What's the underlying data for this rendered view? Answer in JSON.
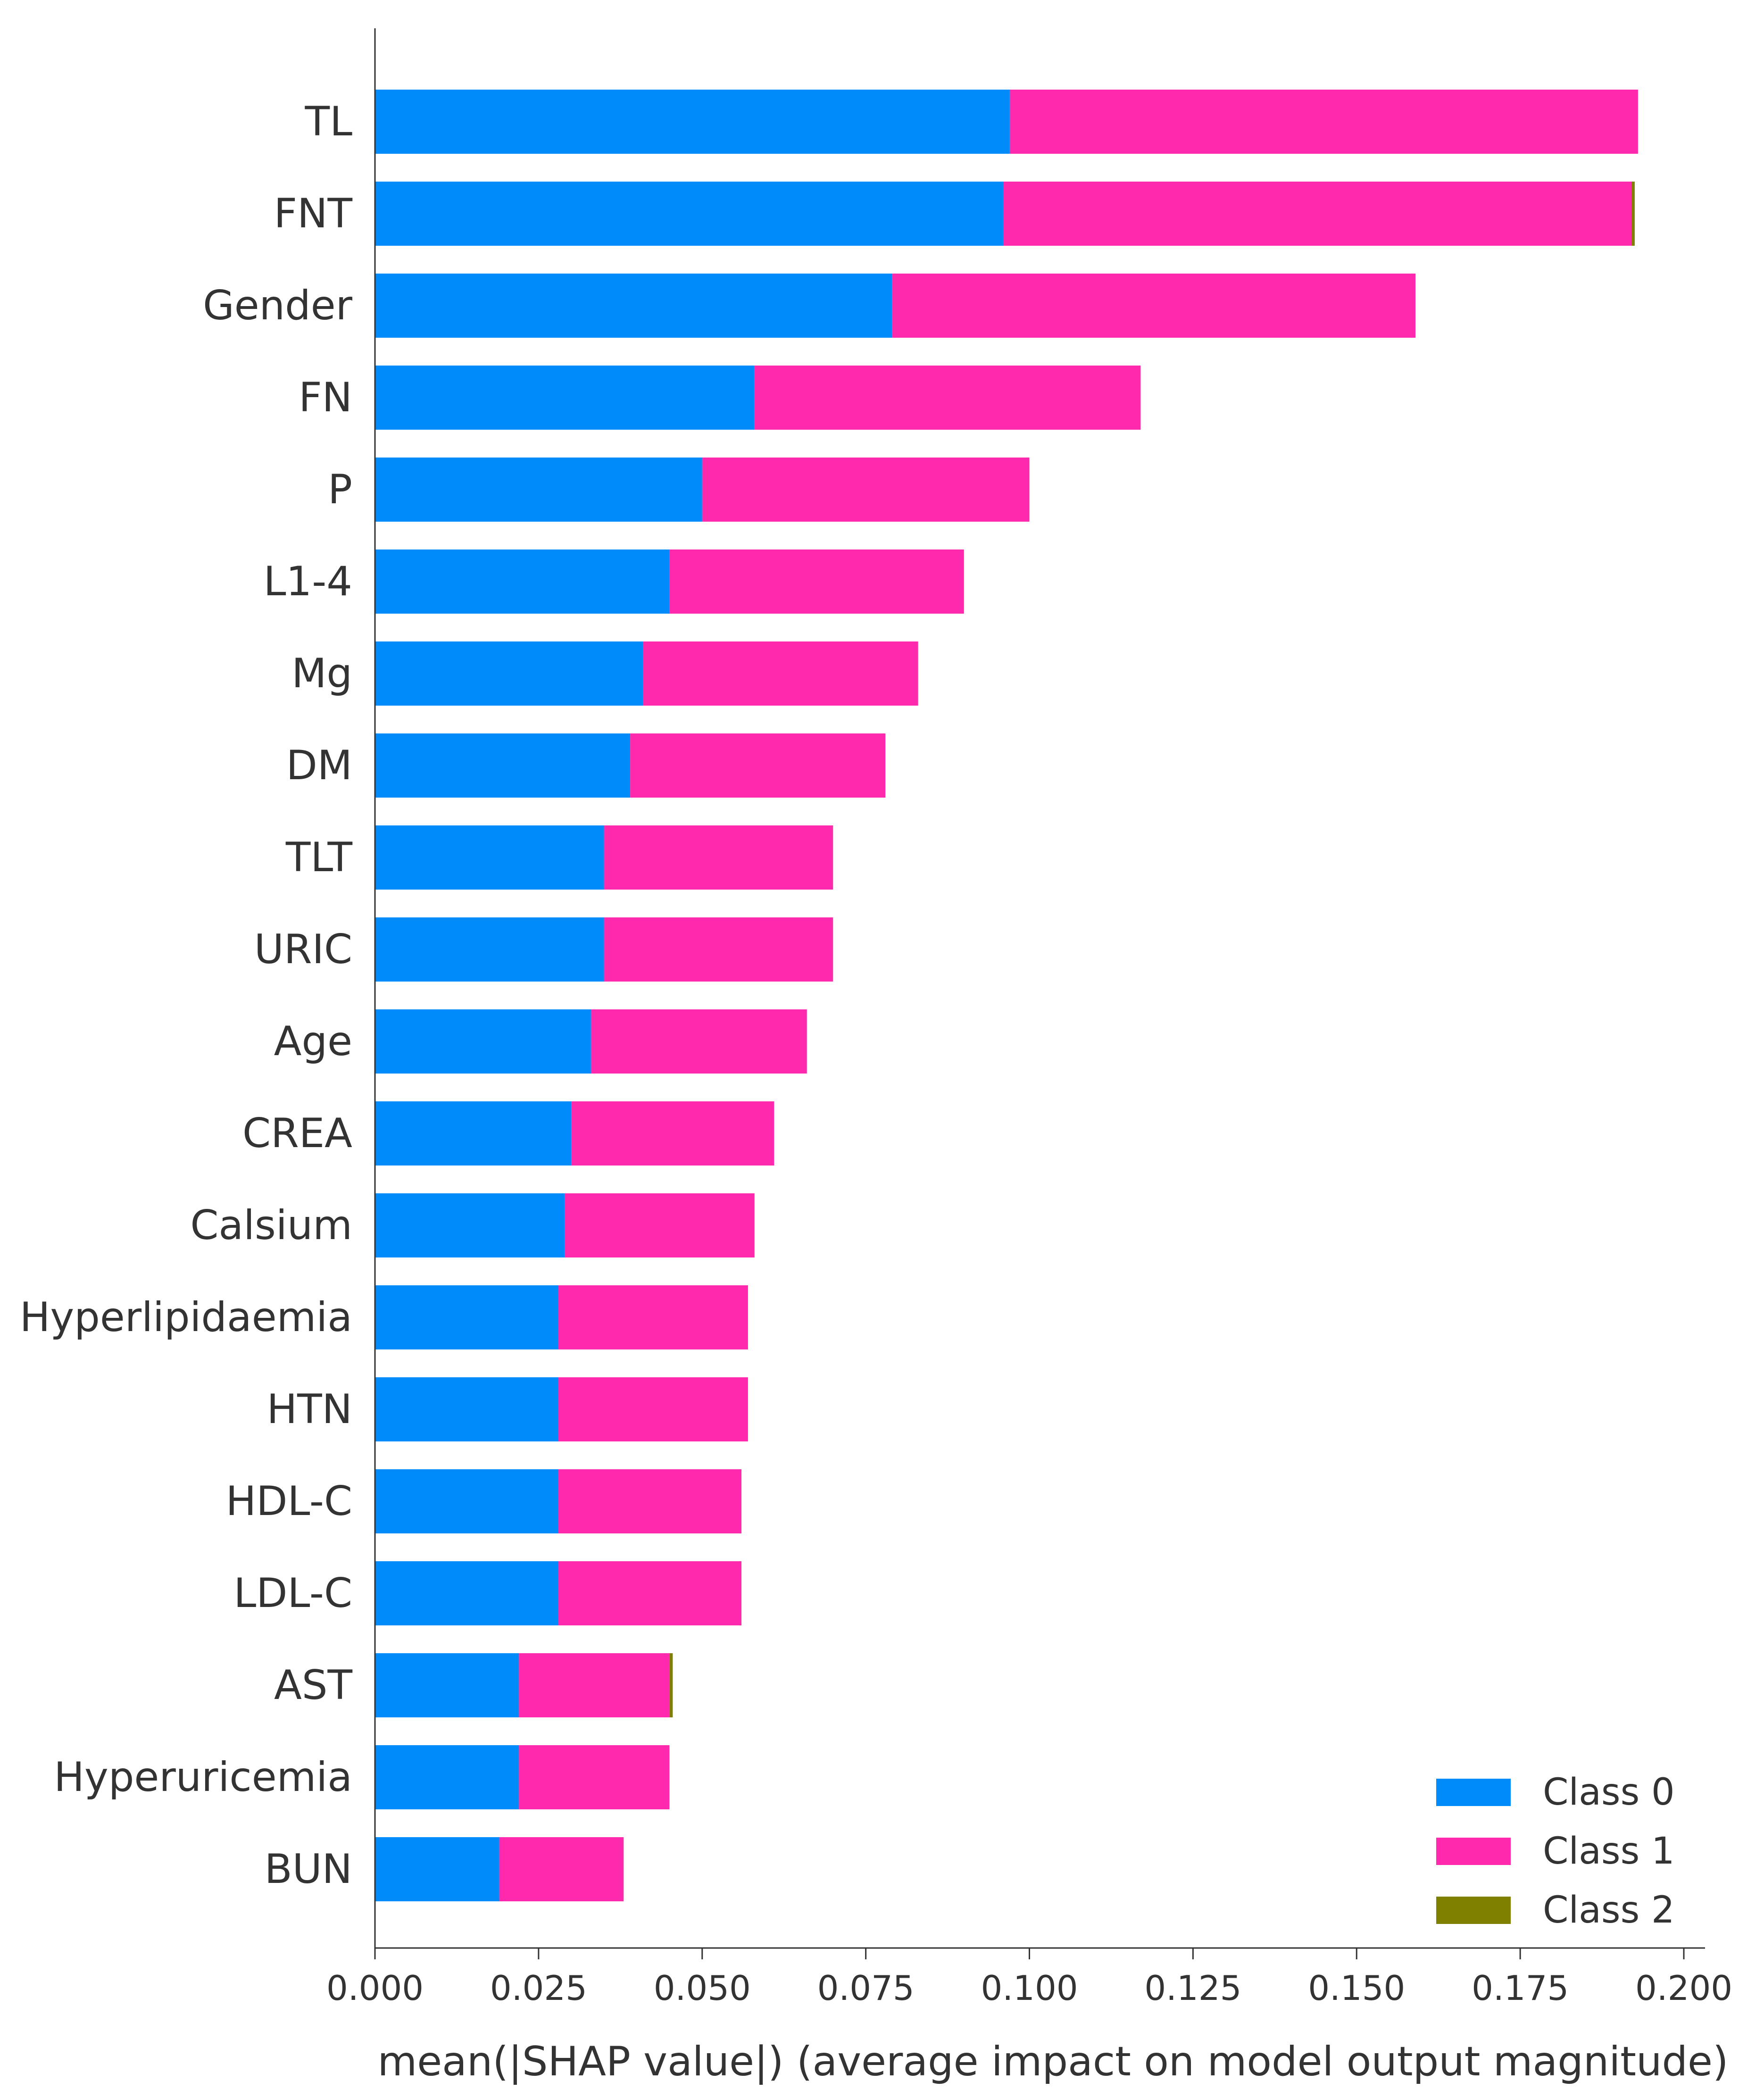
{
  "chart_data": {
    "type": "bar",
    "orientation": "horizontal",
    "stacked": true,
    "categories": [
      "TL",
      "FNT",
      "Gender",
      "FN",
      "P",
      "L1-4",
      "Mg",
      "DM",
      "TLT",
      "URIC",
      "Age",
      "CREA",
      "Calsium",
      "Hyperlipidaemia",
      "HTN",
      "HDL-C",
      "LDL-C",
      "AST",
      "Hyperuricemia",
      "BUN"
    ],
    "series": [
      {
        "name": "Class 0",
        "color": "#008bfb",
        "values": [
          0.097,
          0.096,
          0.079,
          0.058,
          0.05,
          0.045,
          0.041,
          0.039,
          0.035,
          0.035,
          0.033,
          0.03,
          0.029,
          0.028,
          0.028,
          0.028,
          0.028,
          0.022,
          0.022,
          0.019
        ]
      },
      {
        "name": "Class 1",
        "color": "#ff29ae",
        "values": [
          0.096,
          0.096,
          0.08,
          0.059,
          0.05,
          0.045,
          0.042,
          0.039,
          0.035,
          0.035,
          0.033,
          0.031,
          0.029,
          0.029,
          0.029,
          0.028,
          0.028,
          0.023,
          0.023,
          0.019
        ]
      },
      {
        "name": "Class 2",
        "color": "#808000",
        "values": [
          0,
          0.0005,
          0,
          0,
          0,
          0,
          0,
          0,
          0,
          0,
          0,
          0,
          0,
          0,
          0,
          0,
          0,
          0.0005,
          0,
          0
        ]
      }
    ],
    "x_ticks": [
      "0.000",
      "0.025",
      "0.050",
      "0.075",
      "0.100",
      "0.125",
      "0.150",
      "0.175",
      "0.200"
    ],
    "xlim": [
      0,
      0.2
    ],
    "xlabel": "mean(|SHAP value|) (average impact on model output magnitude)",
    "ylabel": "",
    "title": "",
    "legend_position": "bottom-right",
    "grid": false
  }
}
